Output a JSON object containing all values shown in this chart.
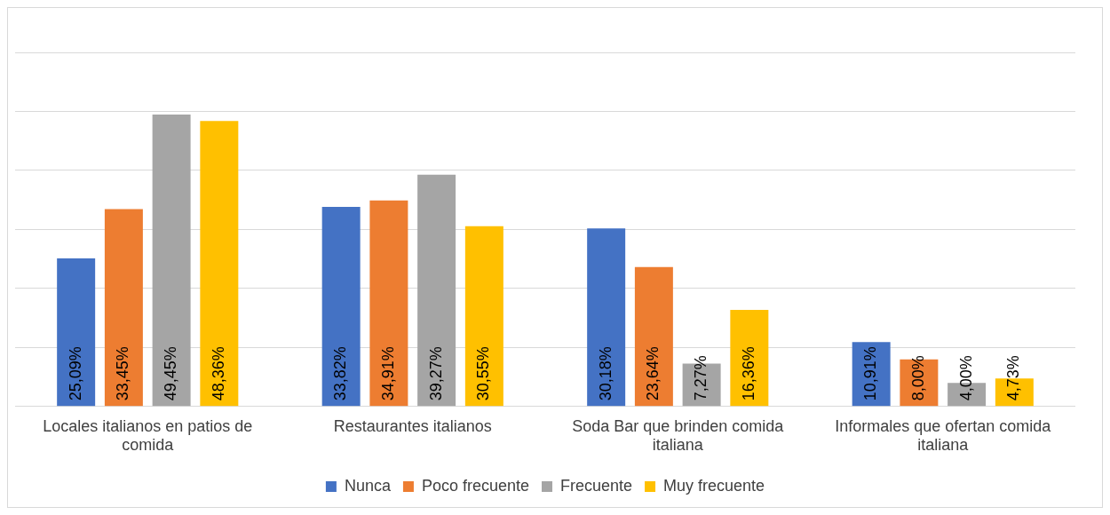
{
  "chart_data": {
    "type": "bar",
    "categories": [
      "Locales italianos en patios de comida",
      "Restaurantes italianos",
      "Soda Bar que brinden comida italiana",
      "Informales que ofertan comida italiana"
    ],
    "series": [
      {
        "name": "Nunca",
        "color": "#4472c4",
        "values": [
          25.09,
          33.82,
          30.18,
          10.91
        ],
        "value_labels": [
          "25,09%",
          "33,82%",
          "30,18%",
          "10,91%"
        ]
      },
      {
        "name": "Poco frecuente",
        "color": "#ed7d31",
        "values": [
          33.45,
          34.91,
          23.64,
          8.0
        ],
        "value_labels": [
          "33,45%",
          "34,91%",
          "23,64%",
          "8,00%"
        ]
      },
      {
        "name": "Frecuente",
        "color": "#a5a5a5",
        "values": [
          49.45,
          39.27,
          7.27,
          4.0
        ],
        "value_labels": [
          "49,45%",
          "39,27%",
          "7,27%",
          "4,00%"
        ]
      },
      {
        "name": "Muy frecuente",
        "color": "#ffc000",
        "values": [
          48.36,
          30.55,
          16.36,
          4.73
        ],
        "value_labels": [
          "48,36%",
          "30,55%",
          "16,36%",
          "4,73%"
        ]
      }
    ],
    "ylim": [
      0,
      60
    ],
    "yticks": [
      0,
      10,
      20,
      30,
      40,
      50,
      60
    ],
    "grid": "y",
    "legend": "bottom",
    "tick_labels": "x"
  }
}
